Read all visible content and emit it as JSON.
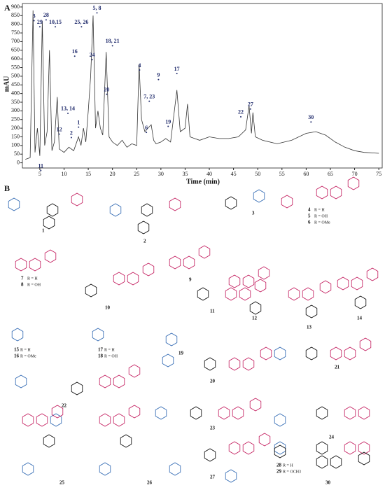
{
  "chart_data": {
    "type": "line",
    "panel_label": "A",
    "y_label": "mAU",
    "x_label": "Time (min)",
    "xlim": [
      1.4,
      75.7
    ],
    "ylim": [
      -30,
      920
    ],
    "xticks": [
      5,
      10,
      15,
      20,
      25,
      30,
      35,
      40,
      45,
      50,
      55,
      60,
      65,
      70,
      75
    ],
    "yticks": [
      0,
      50,
      100,
      150,
      200,
      250,
      300,
      350,
      400,
      450,
      500,
      550,
      600,
      650,
      700,
      750,
      800,
      850,
      900
    ],
    "color": "#333333",
    "x": [
      2,
      3,
      3.6,
      4.0,
      4.5,
      5.0,
      5.5,
      6,
      6.5,
      7,
      7.5,
      8,
      8.6,
      9,
      10,
      11,
      12,
      13,
      13.5,
      14,
      14.5,
      15,
      15.5,
      16,
      16.5,
      17,
      17.5,
      18,
      18.7,
      19.3,
      20,
      21,
      22,
      23,
      24,
      25,
      25.5,
      26,
      26.7,
      27.3,
      28,
      28.5,
      29,
      30,
      31,
      32,
      33.3,
      34,
      35,
      35.5,
      36,
      38,
      40,
      42,
      44,
      46,
      47.5,
      48.2,
      48.7,
      49,
      49.5,
      51,
      54,
      57,
      60,
      62,
      64,
      66,
      68,
      70,
      72,
      75
    ],
    "values": [
      20,
      30,
      880,
      60,
      200,
      40,
      820,
      100,
      180,
      650,
      70,
      120,
      380,
      80,
      60,
      90,
      70,
      150,
      100,
      200,
      120,
      300,
      500,
      850,
      200,
      300,
      200,
      160,
      640,
      150,
      120,
      100,
      130,
      90,
      110,
      100,
      570,
      250,
      180,
      200,
      220,
      130,
      110,
      120,
      140,
      120,
      420,
      180,
      200,
      340,
      150,
      130,
      150,
      140,
      140,
      150,
      190,
      330,
      170,
      290,
      150,
      130,
      110,
      130,
      170,
      180,
      160,
      120,
      90,
      70,
      60,
      55
    ],
    "annotations": [
      {
        "label": "3",
        "x": 3.8,
        "y": 845
      },
      {
        "label": "29",
        "x": 5.0,
        "y": 810
      },
      {
        "label": "28",
        "x": 6.3,
        "y": 850
      },
      {
        "label": "10,15",
        "x": 8.2,
        "y": 810
      },
      {
        "label": "25, 26",
        "x": 13.6,
        "y": 810
      },
      {
        "label": "5, 8",
        "x": 16.8,
        "y": 890
      },
      {
        "label": "18, 21",
        "x": 20.0,
        "y": 700
      },
      {
        "label": "24",
        "x": 15.8,
        "y": 620
      },
      {
        "label": "16",
        "x": 12.2,
        "y": 640
      },
      {
        "label": "4",
        "x": 25.6,
        "y": 560
      },
      {
        "label": "9",
        "x": 29.5,
        "y": 505
      },
      {
        "label": "17",
        "x": 33.3,
        "y": 540
      },
      {
        "label": "7, 23",
        "x": 27.6,
        "y": 380
      },
      {
        "label": "20",
        "x": 18.8,
        "y": 420
      },
      {
        "label": "13, 14",
        "x": 10.8,
        "y": 310
      },
      {
        "label": "12",
        "x": 9.0,
        "y": 190
      },
      {
        "label": "1",
        "x": 13.0,
        "y": 230
      },
      {
        "label": "2",
        "x": 11.5,
        "y": 170
      },
      {
        "label": "6",
        "x": 27.0,
        "y": 200
      },
      {
        "label": "19",
        "x": 31.5,
        "y": 235
      },
      {
        "label": "11",
        "x": 5.2,
        "y": -20
      },
      {
        "label": "22",
        "x": 46.5,
        "y": 290
      },
      {
        "label": "27",
        "x": 48.5,
        "y": 335
      },
      {
        "label": "30",
        "x": 61.0,
        "y": 260
      }
    ]
  },
  "structures": {
    "panel_label": "B",
    "compounds": [
      {
        "id": "1"
      },
      {
        "id": "2"
      },
      {
        "id": "3"
      },
      {
        "id": "4",
        "r": "R = H"
      },
      {
        "id": "5",
        "r": "R = OH"
      },
      {
        "id": "6",
        "r": "R = OMe"
      },
      {
        "id": "7",
        "r": "R = H"
      },
      {
        "id": "8",
        "r": "R = OH"
      },
      {
        "id": "9"
      },
      {
        "id": "10"
      },
      {
        "id": "11"
      },
      {
        "id": "12"
      },
      {
        "id": "13"
      },
      {
        "id": "14"
      },
      {
        "id": "15",
        "r": "R = H"
      },
      {
        "id": "16",
        "r": "R = OMe"
      },
      {
        "id": "17",
        "r": "R = H"
      },
      {
        "id": "18",
        "r": "R = OH"
      },
      {
        "id": "19"
      },
      {
        "id": "20"
      },
      {
        "id": "21"
      },
      {
        "id": "22"
      },
      {
        "id": "23"
      },
      {
        "id": "24"
      },
      {
        "id": "25"
      },
      {
        "id": "26"
      },
      {
        "id": "27"
      },
      {
        "id": "28",
        "r": "R = H"
      },
      {
        "id": "29",
        "r": "R = OCH3"
      },
      {
        "id": "30"
      }
    ]
  }
}
